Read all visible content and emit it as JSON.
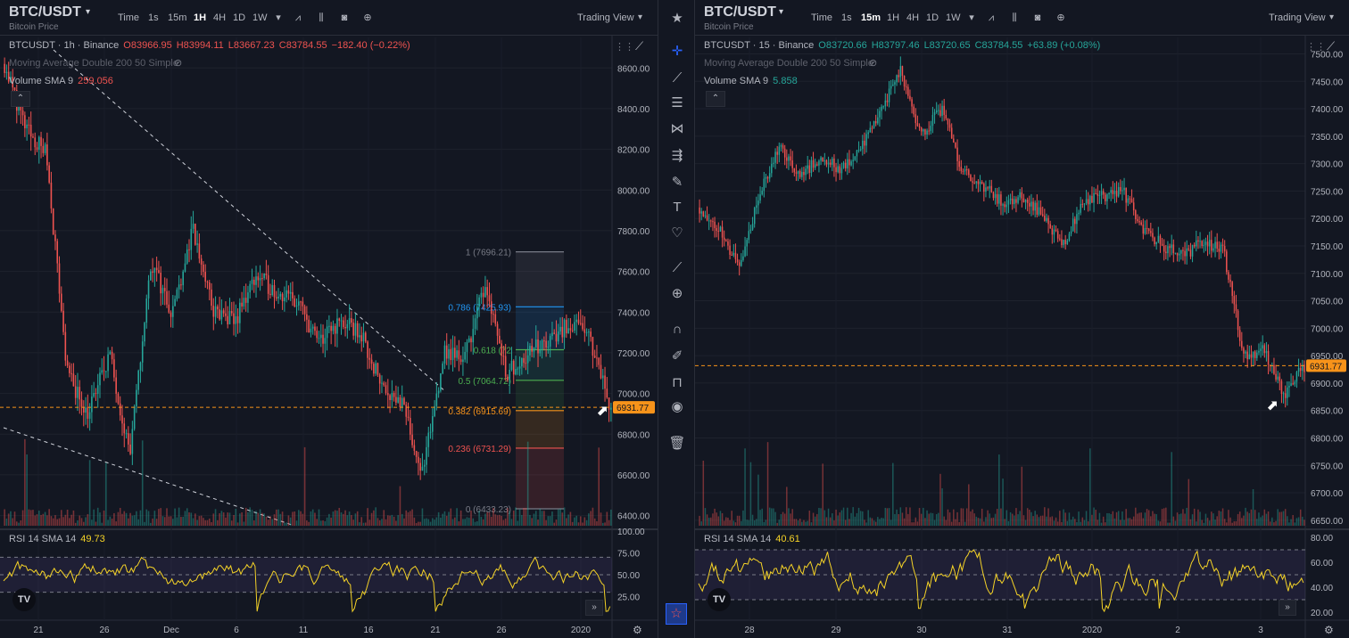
{
  "left": {
    "title": "BTC/USDT",
    "subtitle": "Bitcoin Price",
    "timeframes": [
      "Time",
      "1s",
      "15m",
      "1H",
      "4H",
      "1D",
      "1W"
    ],
    "active": "1H",
    "trading_view": "Trading View",
    "legend_symbol": "BTCUSDT · 1h · Binance",
    "ohlc": {
      "o": "O83966.95",
      "h": "H83994.11",
      "l": "L83667.23",
      "c": "C83784.55",
      "chg": "−182.40 (−0.22%)"
    },
    "ma_label": "Moving Average Double 200 50 Simple",
    "vol_label": "Volume SMA 9",
    "vol_value": "259.056",
    "rsi_label": "RSI 14 SMA 14",
    "rsi_value": "49.73",
    "price_tag": "6931.77"
  },
  "right": {
    "title": "BTC/USDT",
    "subtitle": "Bitcoin Price",
    "timeframes": [
      "Time",
      "1s",
      "15m",
      "1H",
      "4H",
      "1D",
      "1W"
    ],
    "active": "15m",
    "trading_view": "Trading View",
    "legend_symbol": "BTCUSDT · 15 · Binance",
    "ohlc": {
      "o": "O83720.66",
      "h": "H83797.46",
      "l": "L83720.65",
      "c": "C83784.55",
      "chg": "+63.89 (+0.08%)"
    },
    "ma_label": "Moving Average Double 200 50 Simple",
    "vol_label": "Volume SMA 9",
    "vol_value": "5.858",
    "rsi_label": "RSI 14 SMA 14",
    "rsi_value": "40.61",
    "price_tag": "6931.77"
  },
  "colors": {
    "up": "#26a69a",
    "down": "#ef5350",
    "rsi": "#f5d327",
    "last": "#f7931a",
    "bg": "#131722",
    "grid": "#1e222d"
  },
  "chart_data": [
    {
      "type": "candlestick",
      "timeframe": "1h",
      "ylim": [
        6350,
        8750
      ],
      "y_ticks": [
        "8600.00",
        "8400.00",
        "8200.00",
        "8000.00",
        "7800.00",
        "7600.00",
        "7400.00",
        "7200.00",
        "7000.00",
        "6800.00",
        "6600.00",
        "6400.00"
      ],
      "x_ticks": [
        "21",
        "26",
        "Dec",
        "6",
        "11",
        "16",
        "21",
        "26",
        "2020"
      ],
      "close_path": [
        8620,
        8300,
        8180,
        7100,
        6900,
        7200,
        6700,
        7650,
        7400,
        7800,
        7400,
        7350,
        7580,
        7500,
        7450,
        7250,
        7350,
        7300,
        7050,
        6950,
        6600,
        7200,
        7180,
        7550,
        7100,
        7200,
        7250,
        7350,
        7270,
        6930
      ],
      "last_price": 6931.77,
      "fibonacci": [
        {
          "level": "1",
          "price": 7696.21
        },
        {
          "level": "0.786",
          "price": 7425.93
        },
        {
          "level": "0.618",
          "price": 7215
        },
        {
          "level": "0.5",
          "price": 7064.72
        },
        {
          "level": "0.382",
          "price": 6915.69
        },
        {
          "level": "0.236",
          "price": 6731.29
        },
        {
          "level": "0",
          "price": 6433.23
        }
      ],
      "fib_labels": [
        "1 (7696.21)",
        "0.786 (7425.93)",
        "0.618 (72",
        "0.5 (7064.72)",
        "0.382 (6915.69)",
        "0.236 (6731.29)",
        "0 (6433.23)"
      ],
      "rsi": {
        "ylim": [
          0,
          100
        ],
        "ticks": [
          "100.00",
          "75.00",
          "50.00",
          "25.00"
        ],
        "value": 49.73
      }
    },
    {
      "type": "candlestick",
      "timeframe": "15m",
      "ylim": [
        6640,
        7530
      ],
      "y_ticks": [
        "7500.00",
        "7450.00",
        "7400.00",
        "7350.00",
        "7300.00",
        "7250.00",
        "7200.00",
        "7150.00",
        "7100.00",
        "7050.00",
        "7000.00",
        "6950.00",
        "6900.00",
        "6850.00",
        "6800.00",
        "6750.00",
        "6700.00",
        "6650.00"
      ],
      "x_ticks": [
        "28",
        "29",
        "30",
        "31",
        "2020",
        "2",
        "3"
      ],
      "close_path": [
        7220,
        7180,
        7110,
        7250,
        7330,
        7280,
        7310,
        7290,
        7330,
        7400,
        7470,
        7350,
        7400,
        7290,
        7260,
        7230,
        7240,
        7210,
        7150,
        7230,
        7240,
        7250,
        7180,
        7150,
        7130,
        7160,
        7140,
        6950,
        6960,
        6880,
        6931
      ],
      "last_price": 6931.77,
      "rsi": {
        "ylim": [
          15,
          85
        ],
        "ticks": [
          "80.00",
          "60.00",
          "40.00",
          "20.00"
        ],
        "value": 40.61
      }
    }
  ]
}
